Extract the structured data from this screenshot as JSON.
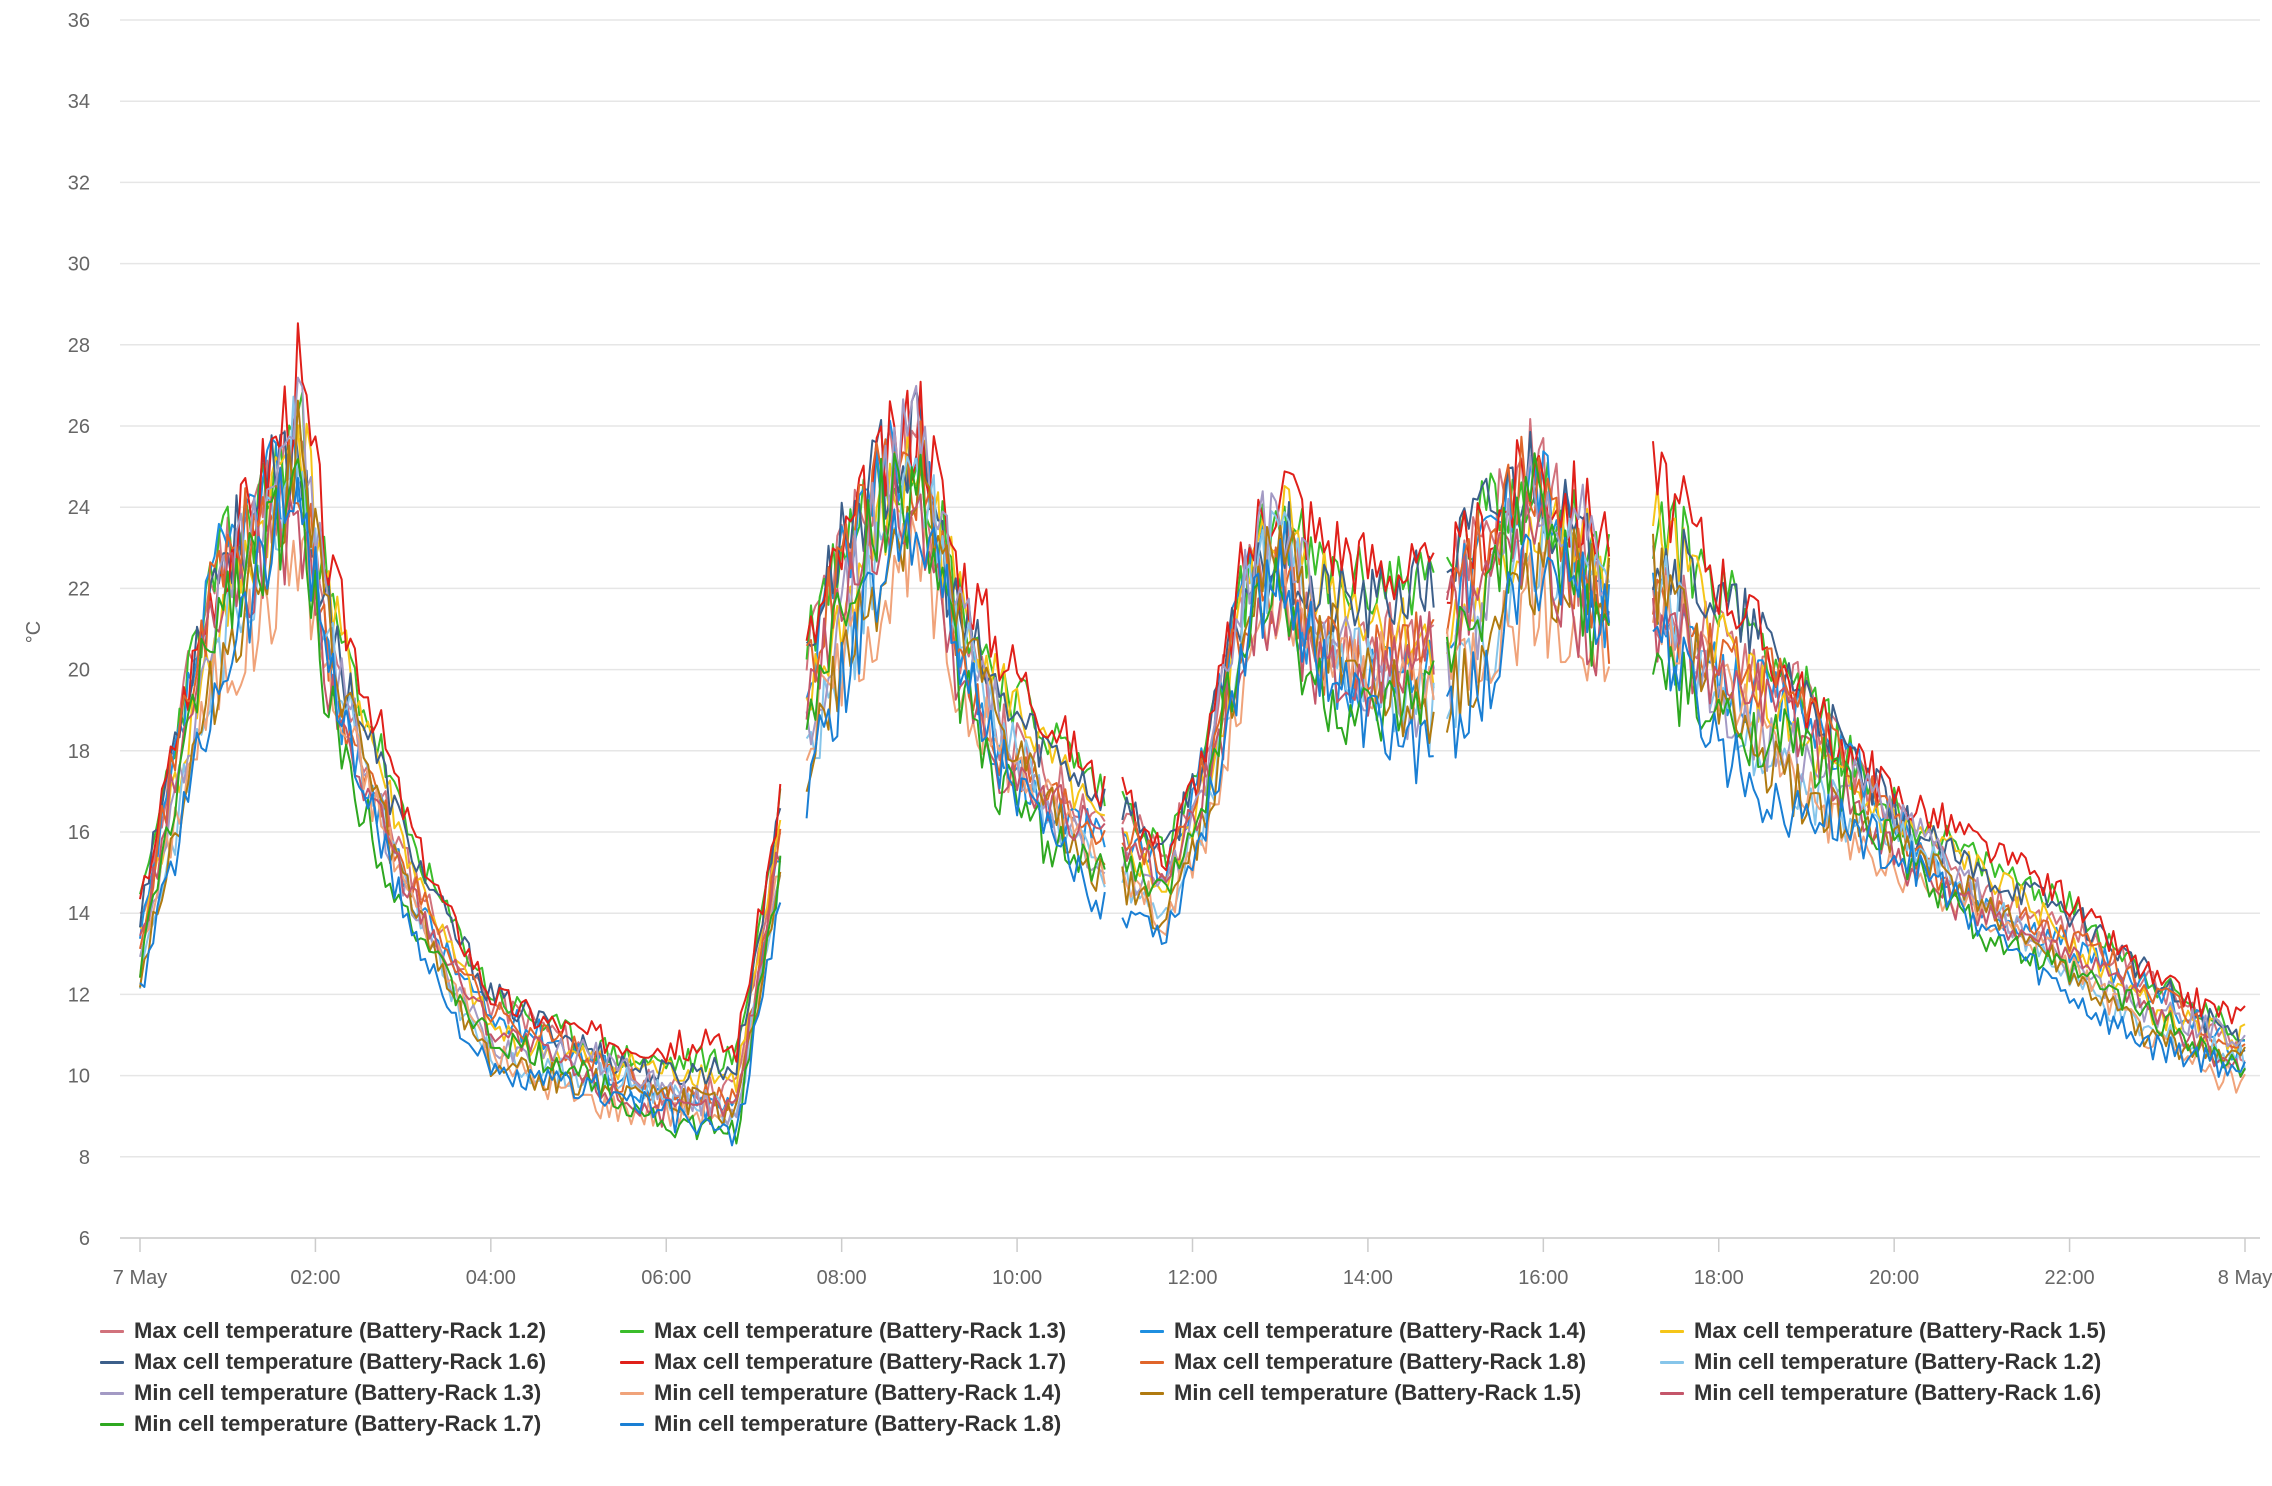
{
  "chart_data": {
    "type": "line",
    "ylabel": "°C",
    "ylim": [
      6,
      36
    ],
    "y_ticks": [
      "6",
      "8",
      "10",
      "12",
      "14",
      "16",
      "18",
      "20",
      "22",
      "24",
      "26",
      "28",
      "30",
      "32",
      "34",
      "36"
    ],
    "x_range_hours": [
      0,
      24
    ],
    "x_ticks": [
      {
        "hour": 0,
        "label": "7 May"
      },
      {
        "hour": 2,
        "label": "02:00"
      },
      {
        "hour": 4,
        "label": "04:00"
      },
      {
        "hour": 6,
        "label": "06:00"
      },
      {
        "hour": 8,
        "label": "08:00"
      },
      {
        "hour": 10,
        "label": "10:00"
      },
      {
        "hour": 12,
        "label": "12:00"
      },
      {
        "hour": 14,
        "label": "14:00"
      },
      {
        "hour": 16,
        "label": "16:00"
      },
      {
        "hour": 18,
        "label": "18:00"
      },
      {
        "hour": 20,
        "label": "20:00"
      },
      {
        "hour": 22,
        "label": "22:00"
      },
      {
        "hour": 24,
        "label": "8 May"
      }
    ],
    "grid": true,
    "legend_position": "bottom",
    "x_gaps_hours": [
      [
        7.3,
        7.55
      ],
      [
        11.05,
        11.2
      ],
      [
        14.8,
        14.9
      ],
      [
        16.8,
        17.25
      ]
    ],
    "base_profile": [
      [
        0.0,
        13.0
      ],
      [
        0.5,
        18.0
      ],
      [
        0.9,
        21.5
      ],
      [
        1.3,
        23.0
      ],
      [
        1.8,
        25.3
      ],
      [
        2.2,
        20.0
      ],
      [
        2.6,
        17.5
      ],
      [
        3.0,
        15.0
      ],
      [
        3.5,
        12.8
      ],
      [
        4.0,
        11.0
      ],
      [
        5.0,
        10.3
      ],
      [
        6.0,
        9.5
      ],
      [
        6.8,
        9.3
      ],
      [
        7.3,
        15.5
      ],
      [
        7.55,
        18.5
      ],
      [
        8.0,
        21.5
      ],
      [
        8.5,
        24.0
      ],
      [
        8.9,
        25.0
      ],
      [
        9.3,
        21.0
      ],
      [
        9.8,
        18.5
      ],
      [
        10.3,
        17.0
      ],
      [
        11.0,
        15.5
      ],
      [
        11.2,
        15.5
      ],
      [
        11.7,
        14.5
      ],
      [
        12.2,
        17.5
      ],
      [
        12.6,
        21.5
      ],
      [
        13.0,
        23.0
      ],
      [
        13.4,
        21.0
      ],
      [
        14.0,
        20.0
      ],
      [
        14.8,
        20.0
      ],
      [
        14.9,
        20.5
      ],
      [
        15.5,
        22.5
      ],
      [
        15.9,
        24.0
      ],
      [
        16.4,
        22.5
      ],
      [
        16.8,
        21.5
      ],
      [
        17.25,
        22.0
      ],
      [
        18.0,
        19.8
      ],
      [
        19.0,
        18.0
      ],
      [
        20.0,
        16.0
      ],
      [
        21.0,
        14.3
      ],
      [
        22.0,
        13.0
      ],
      [
        23.0,
        11.5
      ],
      [
        24.0,
        10.5
      ]
    ],
    "series": [
      {
        "name": "Max cell temperature (Battery-Rack 1.2)",
        "color": "#d1727c",
        "offset": 0.6,
        "phase": 1.0,
        "seed": 11
      },
      {
        "name": "Max cell temperature (Battery-Rack 1.3)",
        "color": "#3bbd2b",
        "offset": 1.2,
        "phase": 2.1,
        "seed": 23
      },
      {
        "name": "Max cell temperature (Battery-Rack 1.4)",
        "color": "#1f8fe0",
        "offset": 0.2,
        "phase": 0.4,
        "seed": 37
      },
      {
        "name": "Max cell temperature (Battery-Rack 1.5)",
        "color": "#f5c518",
        "offset": 0.5,
        "phase": 3.3,
        "seed": 41
      },
      {
        "name": "Max cell temperature (Battery-Rack 1.6)",
        "color": "#3c5f8a",
        "offset": 1.0,
        "phase": 1.7,
        "seed": 53
      },
      {
        "name": "Max cell temperature (Battery-Rack 1.7)",
        "color": "#e0201a",
        "offset": 1.5,
        "phase": 2.8,
        "seed": 67
      },
      {
        "name": "Max cell temperature (Battery-Rack 1.8)",
        "color": "#e0652a",
        "offset": 0.3,
        "phase": 0.9,
        "seed": 71
      },
      {
        "name": "Min cell temperature (Battery-Rack 1.2)",
        "color": "#86c5ea",
        "offset": -0.4,
        "phase": 4.1,
        "seed": 83
      },
      {
        "name": "Min cell temperature (Battery-Rack 1.3)",
        "color": "#a39ac4",
        "offset": 0.0,
        "phase": 5.0,
        "seed": 97
      },
      {
        "name": "Min cell temperature (Battery-Rack 1.4)",
        "color": "#f0a37a",
        "offset": -0.7,
        "phase": 2.5,
        "seed": 101
      },
      {
        "name": "Min cell temperature (Battery-Rack 1.5)",
        "color": "#b07a10",
        "offset": -0.5,
        "phase": 3.9,
        "seed": 113
      },
      {
        "name": "Min cell temperature (Battery-Rack 1.6)",
        "color": "#c4566a",
        "offset": -0.2,
        "phase": 1.3,
        "seed": 127
      },
      {
        "name": "Min cell temperature (Battery-Rack 1.7)",
        "color": "#2ea820",
        "offset": -0.6,
        "phase": 0.2,
        "seed": 131
      },
      {
        "name": "Min cell temperature (Battery-Rack 1.8)",
        "color": "#1a7fd4",
        "offset": -1.0,
        "phase": 4.6,
        "seed": 139
      }
    ]
  }
}
